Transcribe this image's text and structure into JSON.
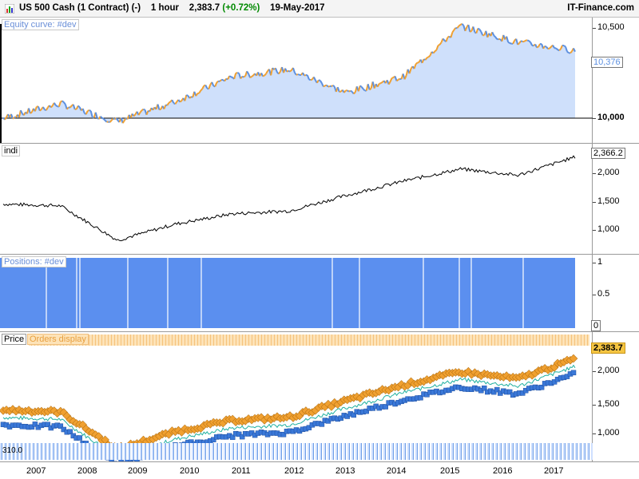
{
  "header": {
    "instrument": "US 500 Cash (1 Contract) (-)",
    "timeframe": "1 hour",
    "price": "2,383.7",
    "change": "(+0.72%)",
    "date": "19-May-2017",
    "brand": "IT-Finance.com"
  },
  "equity_panel": {
    "label": "Equity curve: #dev",
    "ticks": [
      "10,500",
      "10,000"
    ],
    "last_value": "10,376"
  },
  "indi_panel": {
    "label": "indi",
    "ticks": [
      "2,000",
      "1,500",
      "1,000"
    ],
    "last_value": "2,366.2"
  },
  "positions_panel": {
    "label": "Positions: #dev",
    "ticks": [
      "1",
      "0.5",
      "0"
    ]
  },
  "price_panel": {
    "label": "Price",
    "orders_label": "Orders display",
    "ticks": [
      "2,000",
      "1,500",
      "1,000"
    ],
    "last_value": "2,383.7",
    "strip_label": "310.0"
  },
  "xaxis": {
    "years": [
      "2007",
      "2008",
      "2009",
      "2010",
      "2011",
      "2012",
      "2013",
      "2014",
      "2015",
      "2016",
      "2017"
    ]
  },
  "colors": {
    "equity_up": "#f0a030",
    "equity_down": "#5b8fe0",
    "equity_fill": "#cfe0fb",
    "position_fill": "#5b8fef",
    "order_orange": "#f0a030",
    "order_blue": "#3a78d8",
    "price_change": "#008a00"
  },
  "chart_data": {
    "type": "line",
    "x": [
      "2007",
      "2008",
      "2009",
      "2010",
      "2011",
      "2012",
      "2013",
      "2014",
      "2015",
      "2016",
      "2017"
    ],
    "series": [
      {
        "name": "indi",
        "values": [
          1450,
          1420,
          820,
          1100,
          1280,
          1330,
          1600,
          1850,
          2060,
          1950,
          2270
        ]
      },
      {
        "name": "Equity curve: #dev",
        "values": [
          10000,
          10080,
          9980,
          10090,
          10230,
          10270,
          10140,
          10230,
          10510,
          10420,
          10376
        ]
      }
    ],
    "positions": {
      "value": 1,
      "ylim": [
        0,
        1
      ]
    }
  }
}
